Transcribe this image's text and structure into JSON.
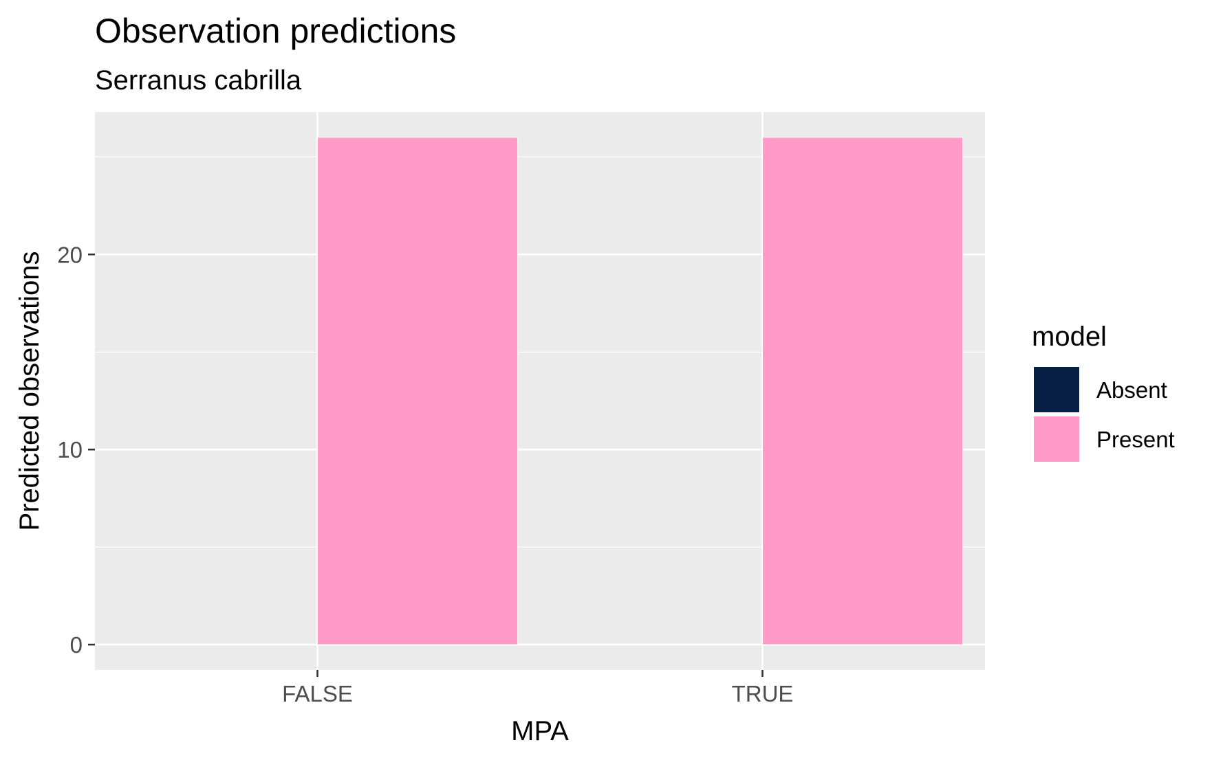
{
  "chart_data": {
    "type": "bar",
    "title": "Observation predictions",
    "subtitle": "Serranus cabrilla",
    "xlabel": "MPA",
    "ylabel": "Predicted observations",
    "categories": [
      "FALSE",
      "TRUE"
    ],
    "series": [
      {
        "name": "Absent",
        "values": [
          0,
          0
        ]
      },
      {
        "name": "Present",
        "values": [
          26,
          26
        ]
      }
    ],
    "ylim": [
      -1.3,
      27.3
    ],
    "yticks": [
      0,
      10,
      20
    ],
    "grid": true,
    "legend": {
      "title": "model",
      "position": "right",
      "entries": [
        "Absent",
        "Present"
      ]
    },
    "colors": {
      "Absent": "#071e45",
      "Present": "#ff9bc8",
      "panel_background": "#ebebeb",
      "grid": "#ffffff",
      "tick_text": "#4d4d4d"
    }
  }
}
